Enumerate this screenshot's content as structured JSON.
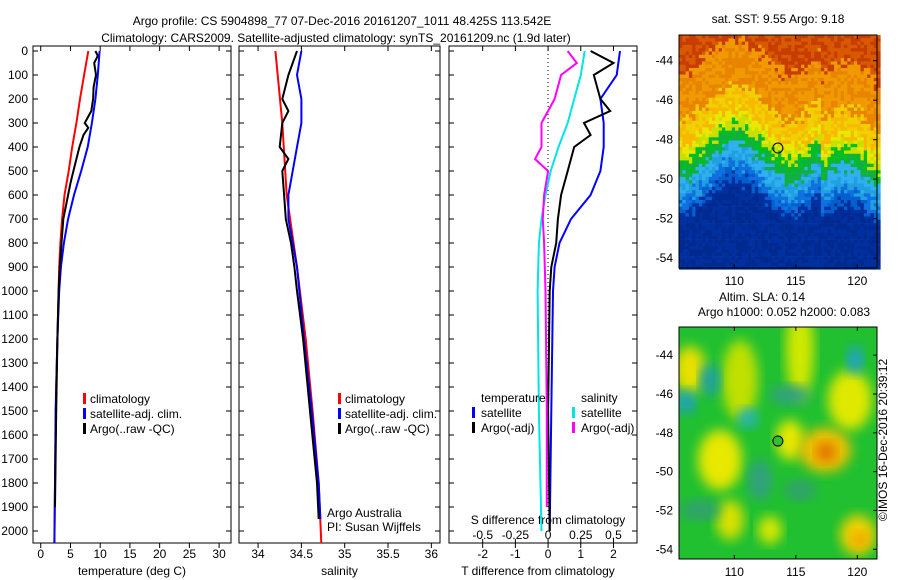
{
  "title": {
    "line1": "Argo profile: CS 5904898_77 07-Dec-2016 20161207_1011 48.425S 113.542E",
    "line2": "Climatology: CARS2009. Satellite-adjusted climatology: synTS_20161209.nc (1.9d later)"
  },
  "colors": {
    "climatology": "#ff0000",
    "satellite": "#0000ff",
    "argo": "#000000",
    "s_satellite": "#00e5e5",
    "s_argo": "#ff00ff"
  },
  "chart_data": [
    {
      "type": "line",
      "xlabel": "temperature (deg C)",
      "ylabel": "",
      "xlim": [
        -1.3,
        32
      ],
      "ylim": [
        2050,
        0
      ],
      "xticks": [
        "0",
        "5",
        "10",
        "15",
        "20",
        "25",
        "30"
      ],
      "xtick_values": [
        0,
        5,
        10,
        15,
        20,
        25,
        30
      ],
      "yticks": [
        "0",
        "100",
        "200",
        "300",
        "400",
        "500",
        "600",
        "700",
        "800",
        "900",
        "1000",
        "1100",
        "1200",
        "1300",
        "1400",
        "1500",
        "1600",
        "1700",
        "1800",
        "1900",
        "2000"
      ],
      "legend": [
        "climatology",
        "satellite-adj. clim.",
        "Argo(..raw -QC)"
      ],
      "series": [
        {
          "name": "climatology",
          "depth": [
            0,
            100,
            200,
            300,
            400,
            500,
            600,
            700,
            800,
            900,
            1000,
            1200,
            1400,
            1600,
            1800,
            2050
          ],
          "values": [
            8.0,
            7.3,
            6.6,
            6.0,
            5.3,
            4.7,
            4.0,
            3.6,
            3.3,
            3.1,
            3.0,
            2.8,
            2.6,
            2.5,
            2.4,
            2.3
          ]
        },
        {
          "name": "satellite-adj. clim.",
          "depth": [
            0,
            100,
            200,
            300,
            400,
            500,
            600,
            700,
            800,
            900,
            1000,
            1200,
            1500,
            1800,
            2050
          ],
          "values": [
            9.9,
            9.6,
            9.2,
            8.6,
            7.9,
            6.8,
            5.6,
            4.6,
            3.9,
            3.4,
            3.1,
            2.8,
            2.5,
            2.4,
            2.3
          ]
        },
        {
          "name": "Argo(..raw -QC)",
          "depth": [
            0,
            20,
            50,
            100,
            150,
            200,
            250,
            300,
            320,
            350,
            400,
            450,
            500,
            550,
            600,
            700,
            800,
            900,
            1000,
            1200,
            1500,
            1900
          ],
          "values": [
            9.2,
            9.6,
            9.0,
            9.3,
            8.9,
            8.8,
            8.5,
            7.4,
            8.0,
            7.2,
            6.5,
            6.0,
            5.5,
            5.0,
            4.6,
            3.8,
            3.5,
            3.2,
            3.0,
            2.8,
            2.6,
            2.4
          ]
        }
      ]
    },
    {
      "type": "line",
      "xlabel": "salinity",
      "xlim": [
        33.78,
        36.1
      ],
      "ylim": [
        2050,
        0
      ],
      "xticks": [
        "34",
        "34.5",
        "35",
        "35.5",
        "36"
      ],
      "xtick_values": [
        34,
        34.5,
        35,
        35.5,
        36
      ],
      "legend": [
        "climatology",
        "satellite-adj. clim.",
        "Argo(..raw -QC)"
      ],
      "annotation": [
        "Argo Australia",
        "PI: Susan Wijffels"
      ],
      "series": [
        {
          "name": "climatology",
          "depth": [
            0,
            300,
            600,
            900,
            1200,
            1500,
            1800,
            2050
          ],
          "values": [
            34.2,
            34.28,
            34.33,
            34.45,
            34.55,
            34.63,
            34.7,
            34.73
          ]
        },
        {
          "name": "satellite-adj. clim.",
          "depth": [
            0,
            100,
            200,
            300,
            400,
            500,
            600,
            700,
            800,
            900,
            1200,
            1500,
            1800,
            1950
          ],
          "values": [
            34.5,
            34.45,
            34.5,
            34.5,
            34.45,
            34.4,
            34.35,
            34.35,
            34.4,
            34.45,
            34.53,
            34.62,
            34.7,
            34.72
          ]
        },
        {
          "name": "Argo(..raw -QC)",
          "depth": [
            0,
            50,
            100,
            200,
            250,
            300,
            400,
            450,
            500,
            600,
            700,
            800,
            900,
            1000,
            1200,
            1500,
            1800,
            1950
          ],
          "values": [
            34.45,
            34.4,
            34.35,
            34.28,
            34.35,
            34.28,
            34.25,
            34.35,
            34.28,
            34.3,
            34.32,
            34.38,
            34.42,
            34.45,
            34.52,
            34.6,
            34.68,
            34.7
          ]
        }
      ]
    },
    {
      "type": "line",
      "xlabel": "T difference from climatology",
      "x2label": "S difference from climatology",
      "xlim": [
        -3.03,
        2.72
      ],
      "ylim": [
        2050,
        0
      ],
      "xticks": [
        "-2",
        "-1",
        "0",
        "1",
        "2"
      ],
      "xtick_values": [
        -2,
        -1,
        0,
        1,
        2
      ],
      "x2ticks": [
        "-0.5",
        "-0.25",
        "0",
        "0.25",
        "0.5"
      ],
      "x2tick_values": [
        -0.5,
        -0.25,
        0,
        0.25,
        0.5
      ],
      "legend_headers": [
        "temperature",
        "salinity"
      ],
      "legend": [
        "satellite",
        "Argo(-adj)",
        "satellite",
        "Argo(-adj)"
      ],
      "series": [
        {
          "name": "T satellite",
          "axis": "T",
          "depth": [
            0,
            100,
            200,
            300,
            400,
            500,
            600,
            700,
            800,
            900,
            1000,
            1500,
            2000
          ],
          "values": [
            2.2,
            2.1,
            1.6,
            1.7,
            1.7,
            1.6,
            1.3,
            0.7,
            0.35,
            0.2,
            0.15,
            0.1,
            0.05
          ]
        },
        {
          "name": "T Argo(-adj)",
          "axis": "T",
          "depth": [
            0,
            50,
            100,
            200,
            250,
            300,
            350,
            400,
            500,
            600,
            700,
            800,
            900,
            1000,
            1500,
            2000
          ],
          "values": [
            1.3,
            2.0,
            1.4,
            1.6,
            1.9,
            1.1,
            1.3,
            0.8,
            0.6,
            0.4,
            0.3,
            0.25,
            0.1,
            0.05,
            0.0,
            0.05
          ]
        },
        {
          "name": "S satellite",
          "axis": "S",
          "depth": [
            0,
            100,
            200,
            300,
            400,
            500,
            600,
            700,
            800,
            1000,
            1500,
            2000
          ],
          "values": [
            0.28,
            0.25,
            0.2,
            0.15,
            0.08,
            0.02,
            -0.02,
            -0.05,
            -0.07,
            -0.08,
            -0.07,
            -0.05
          ]
        },
        {
          "name": "S Argo(-adj)",
          "axis": "S",
          "depth": [
            0,
            50,
            100,
            200,
            300,
            400,
            450,
            500,
            600,
            700,
            800,
            1000,
            1500,
            1900
          ],
          "values": [
            0.15,
            0.22,
            0.1,
            0.05,
            -0.05,
            -0.05,
            -0.1,
            0.0,
            -0.03,
            -0.04,
            -0.03,
            -0.02,
            -0.01,
            -0.01
          ]
        }
      ]
    },
    {
      "type": "heatmap",
      "title": "sat. SST: 9.55 Argo: 9.18",
      "xlim": [
        105.5,
        121.6
      ],
      "ylim": [
        -54.5,
        -42.7
      ],
      "xticks": [
        "110",
        "115",
        "120"
      ],
      "xtick_values": [
        110,
        115,
        120
      ],
      "yticks": [
        "-44",
        "-46",
        "-48",
        "-50",
        "-52",
        "-54"
      ],
      "ytick_values": [
        -44,
        -46,
        -48,
        -50,
        -52,
        -54
      ],
      "marker": {
        "lon": 113.542,
        "lat": -48.425
      }
    },
    {
      "type": "heatmap",
      "title": "Altim. SLA: 0.14",
      "subtitle": "Argo h1000: 0.052 h2000: 0.083",
      "xlim": [
        105.5,
        121.6
      ],
      "ylim": [
        -54.5,
        -42.55
      ],
      "xticks": [
        "110",
        "115",
        "120"
      ],
      "xtick_values": [
        110,
        115,
        120
      ],
      "yticks": [
        "-44",
        "-46",
        "-48",
        "-50",
        "-52",
        "-54"
      ],
      "ytick_values": [
        -44,
        -46,
        -48,
        -50,
        -52,
        -54
      ],
      "marker": {
        "lon": 113.542,
        "lat": -48.425
      }
    }
  ],
  "credit": "©IMOS 16-Dec-2016 20:39:12"
}
